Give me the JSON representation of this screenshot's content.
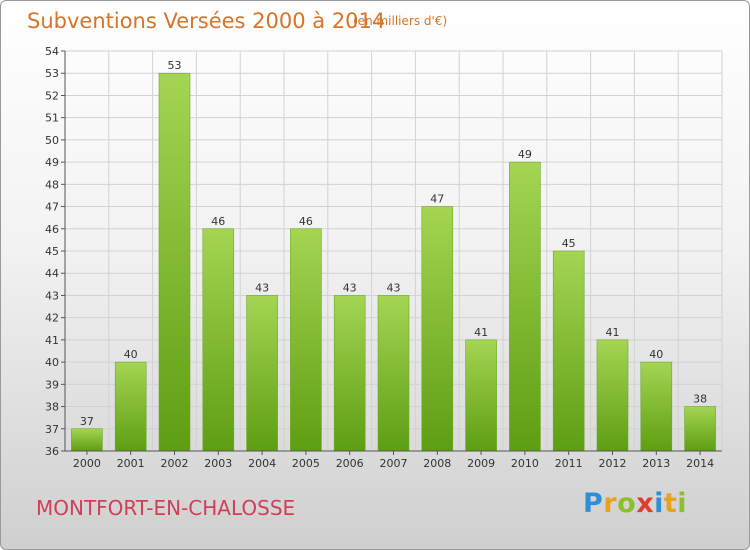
{
  "title": "Subventions Versées 2000 à 2014",
  "subtitle": "(en milliers d'€)",
  "place": "MONTFORT-EN-CHALOSSE",
  "logo": {
    "letters": [
      "P",
      "r",
      "o",
      "x",
      "i",
      "t",
      "i"
    ],
    "colors": [
      "#2f8fd6",
      "#e8a21d",
      "#8cbf2b",
      "#e23d2c",
      "#2f8fd6",
      "#e8a21d",
      "#8cbf2b"
    ]
  },
  "colors": {
    "bar_light": "#a4d553",
    "bar_dark": "#5e9e12",
    "grid": "#d2d2d2",
    "title": "#d6742a",
    "place": "#d23e57"
  },
  "chart_data": {
    "type": "bar",
    "title": "Subventions Versées 2000 à 2014",
    "subtitle": "(en milliers d'€)",
    "categories": [
      "2000",
      "2001",
      "2002",
      "2003",
      "2004",
      "2005",
      "2006",
      "2007",
      "2008",
      "2009",
      "2010",
      "2011",
      "2012",
      "2013",
      "2014"
    ],
    "values": [
      37,
      40,
      53,
      46,
      43,
      46,
      43,
      43,
      47,
      41,
      49,
      45,
      41,
      40,
      38
    ],
    "ylim": [
      36,
      54
    ],
    "yticks": [
      36,
      37,
      38,
      39,
      40,
      41,
      42,
      43,
      44,
      45,
      46,
      47,
      48,
      49,
      50,
      51,
      52,
      53,
      54
    ],
    "grid": true,
    "data_labels": true
  }
}
